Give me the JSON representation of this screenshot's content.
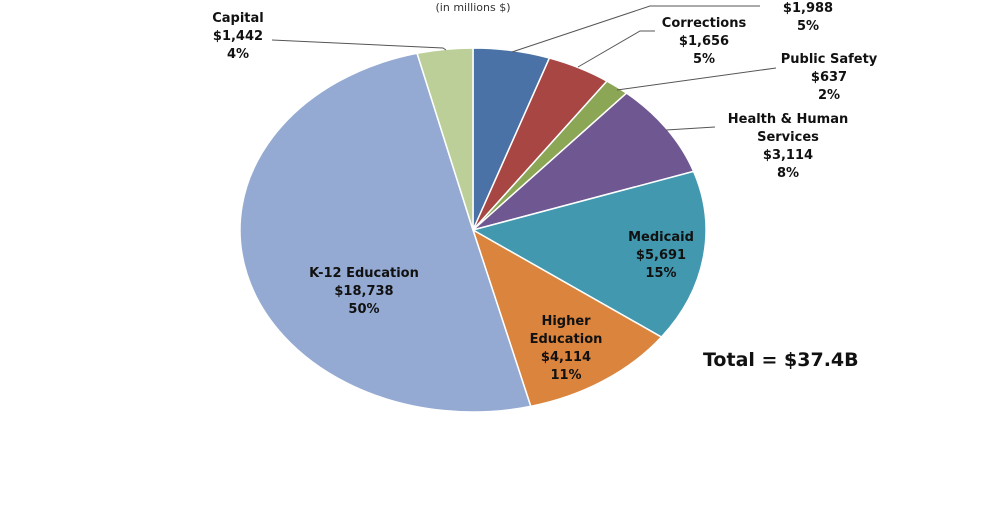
{
  "chart_data": {
    "type": "pie",
    "subtitle": "(in millions $)",
    "total_label": "Total = $37.4B",
    "slices": [
      {
        "label": "",
        "value": 1988,
        "value_label": "$1,988",
        "percent": "5%",
        "color": "#4a72a6"
      },
      {
        "label": "Corrections",
        "value": 1656,
        "value_label": "$1,656",
        "percent": "5%",
        "color": "#a84644"
      },
      {
        "label": "Public Safety",
        "value": 637,
        "value_label": "$637",
        "percent": "2%",
        "color": "#8ba655"
      },
      {
        "label": "Health & Human Services",
        "value": 3114,
        "value_label": "$3,114",
        "percent": "8%",
        "color": "#6f5791"
      },
      {
        "label": "Medicaid",
        "value": 5691,
        "value_label": "$5,691",
        "percent": "15%",
        "color": "#4198af"
      },
      {
        "label": "Higher Education",
        "value": 4114,
        "value_label": "$4,114",
        "percent": "11%",
        "color": "#db843d"
      },
      {
        "label": "K-12 Education",
        "value": 18738,
        "value_label": "$18,738",
        "percent": "50%",
        "color": "#94aad2"
      },
      {
        "label": "Capital",
        "value": 1442,
        "value_label": "$1,442",
        "percent": "4%",
        "color": "#bdcf98"
      }
    ]
  }
}
